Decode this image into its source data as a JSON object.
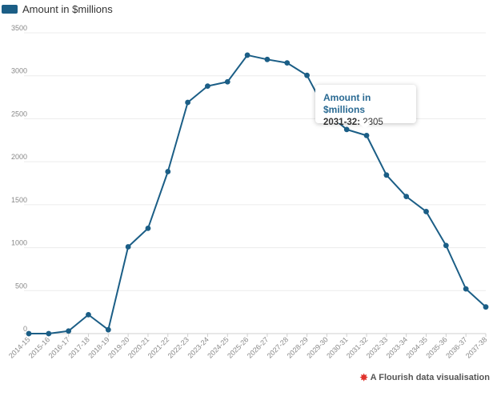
{
  "legend": {
    "label": "Amount in $millions",
    "color": "#1b5e86"
  },
  "tooltip": {
    "title": "Amount in $millions",
    "category": "2031-32:",
    "value": "2305"
  },
  "credit": {
    "text": "A Flourish data visualisation",
    "icon": "flourish-star-icon",
    "color": "#e0322c"
  },
  "chart_data": {
    "type": "line",
    "title": "",
    "xlabel": "",
    "ylabel": "",
    "ylim": [
      0,
      3500
    ],
    "yticks": [
      0,
      500,
      1000,
      1500,
      2000,
      2500,
      3000,
      3500
    ],
    "grid": true,
    "legend_position": "top-left",
    "categories": [
      "2014-15",
      "2015-16",
      "2016-17",
      "2017-18",
      "2018-19",
      "2019-20",
      "2020-21",
      "2021-22",
      "2022-23",
      "2023-24",
      "2024-25",
      "2025-26",
      "2026-27",
      "2027-28",
      "2028-29",
      "2029-30",
      "2030-31",
      "2031-32",
      "2032-33",
      "2033-34",
      "2034-35",
      "2035-36",
      "2036-37",
      "2037-38"
    ],
    "series": [
      {
        "name": "Amount in $millions",
        "color": "#1b5e86",
        "values": [
          0,
          0,
          30,
          220,
          45,
          1010,
          1225,
          1885,
          2690,
          2880,
          2930,
          3240,
          3190,
          3150,
          3005,
          2570,
          2375,
          2305,
          1845,
          1595,
          1420,
          1025,
          520,
          310
        ]
      }
    ]
  }
}
